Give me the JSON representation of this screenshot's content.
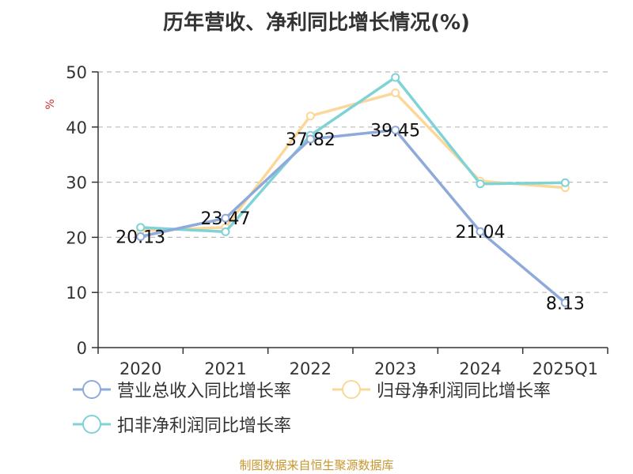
{
  "chart_data": {
    "type": "line",
    "title": "历年营收、净利同比增长情况(%)",
    "ylabel": "%",
    "categories": [
      "2020",
      "2021",
      "2022",
      "2023",
      "2024",
      "2025Q1"
    ],
    "ylim": [
      0,
      50
    ],
    "yticks": [
      0,
      10,
      20,
      30,
      40,
      50
    ],
    "grid": true,
    "legend_position": "bottom",
    "series": [
      {
        "name": "营业总收入同比增长率",
        "color": "#8eaadb",
        "values": [
          20.13,
          23.47,
          37.82,
          39.45,
          21.04,
          8.13
        ],
        "labels": [
          "20.13",
          "23.47",
          "37.82",
          "39.45",
          "21.04",
          "8.13"
        ]
      },
      {
        "name": "归母净利润同比增长率",
        "color": "#fbd89a",
        "values": [
          21.2,
          21.8,
          42.0,
          46.2,
          30.2,
          29.0
        ]
      },
      {
        "name": "扣非净利润同比增长率",
        "color": "#7fd3d6",
        "values": [
          21.8,
          21.0,
          38.5,
          49.0,
          29.7,
          29.9
        ]
      }
    ]
  },
  "source": "制图数据来自恒生聚源数据库",
  "colors": {
    "source_text": "#c8962e",
    "ylabel_unit": "#cc3333",
    "grid": "#bbbbbb",
    "axis": "#333333"
  }
}
